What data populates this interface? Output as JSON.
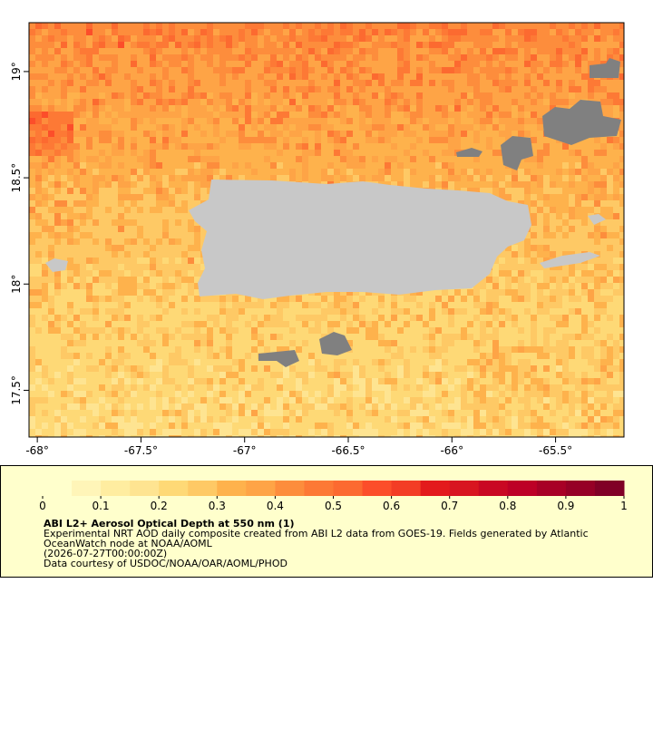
{
  "map": {
    "xlim": [
      -68.04,
      -65.17
    ],
    "ylim": [
      17.28,
      19.23
    ],
    "xticks": [
      {
        "value": -68,
        "label": "-68°"
      },
      {
        "value": -67.5,
        "label": "-67.5°"
      },
      {
        "value": -67,
        "label": "-67°"
      },
      {
        "value": -66.5,
        "label": "-66.5°"
      },
      {
        "value": -66,
        "label": "-66°"
      },
      {
        "value": -65.5,
        "label": "-65.5°"
      }
    ],
    "yticks": [
      {
        "value": 17.5,
        "label": "17.5°"
      },
      {
        "value": 18,
        "label": "18°"
      },
      {
        "value": 18.5,
        "label": "18.5°"
      },
      {
        "value": 19,
        "label": "19°"
      }
    ]
  },
  "legend": {
    "colorbar": {
      "lim": [
        0,
        1
      ],
      "ticks": [
        0,
        0.1,
        0.2,
        0.3,
        0.4,
        0.5,
        0.6,
        0.7,
        0.8,
        0.9,
        1
      ],
      "colors": [
        "#ffffcc",
        "#fff5b8",
        "#ffeda0",
        "#fee491",
        "#fed976",
        "#fec965",
        "#feb24c",
        "#fea446",
        "#fd8d3c",
        "#fd7935",
        "#fc6a30",
        "#fc4e2a",
        "#f33d25",
        "#e31a1c",
        "#d81520",
        "#c90823",
        "#bd0026",
        "#a80026",
        "#960026",
        "#800026"
      ]
    },
    "title": "ABI L2+ Aerosol Optical Depth at 550 nm (1)",
    "lines": [
      "Experimental NRT AOD daily composite created from ABI L2 data from GOES-19. Fields generated by Atlantic",
      "OceanWatch node at NOAA/AOML",
      "(2026-07-27T00:00:00Z)",
      "Data courtesy of USDOC/NOAA/OAR/AOML/PHOD"
    ]
  }
}
